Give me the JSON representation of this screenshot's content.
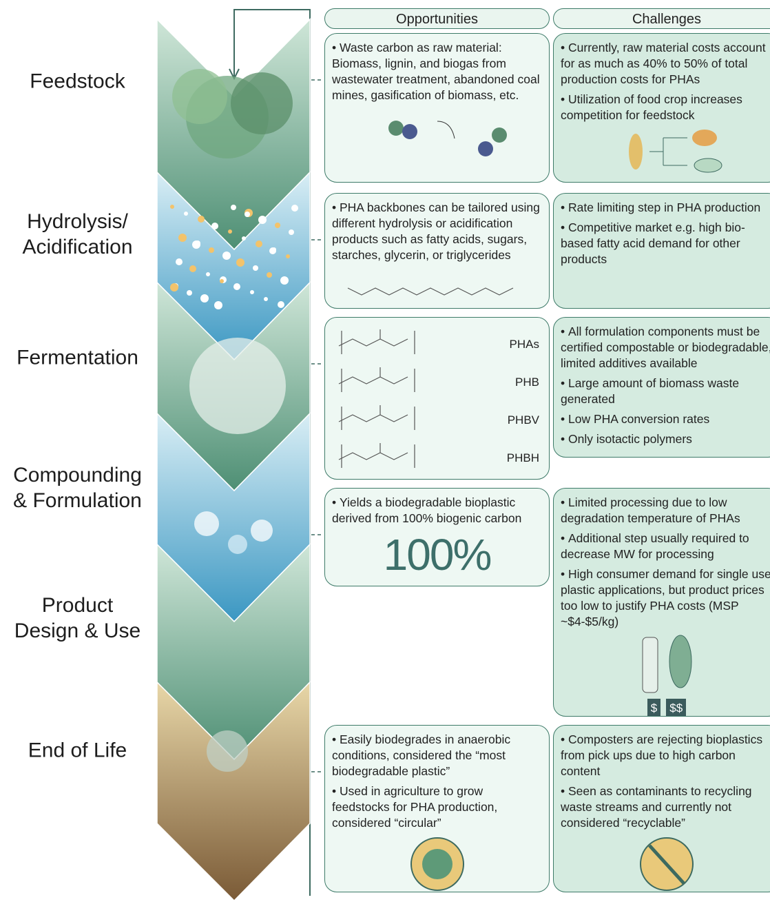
{
  "columns": {
    "opportunities": "Opportunities",
    "challenges": "Challenges"
  },
  "stages": [
    {
      "label": "Feedstock",
      "opportunities": [
        "Waste carbon as raw material: Biomass, lignin, and biogas from wastewater treatment, abandoned coal mines, gasification of biomass, etc."
      ],
      "challenges": [
        "Currently, raw material costs account for as much as 40% to 50% of total production costs for PHAs",
        "Utilization of food crop increases competition for feedstock"
      ]
    },
    {
      "label": "Hydrolysis/\nAcidification",
      "opportunities": [
        "PHA backbones can be tailored using different hydrolysis or acidification products such as fatty acids, sugars, starches, glycerin, or triglycerides"
      ],
      "challenges": [
        "Rate limiting step in PHA production",
        "Competitive market e.g. high bio-based fatty acid demand for other products"
      ]
    },
    {
      "label": "Fermentation",
      "polymers": [
        "PHAs",
        "PHB",
        "PHBV",
        "PHBH"
      ],
      "challenges": [
        "All formulation components must be certified compostable or biodegradable, limited additives available",
        "Large amount of biomass waste generated",
        "Low PHA conversion rates",
        "Only isotactic polymers"
      ]
    },
    {
      "label": "Compounding\n& Formulation",
      "opportunities": [
        "Yields a biodegradable bioplastic derived from 100% biogenic carbon"
      ],
      "badge": "100%",
      "challenges": [
        "Limited processing due to low degradation temperature of PHAs",
        "Additional step usually required to decrease MW for processing",
        "High consumer demand for single use plastic applications, but product prices too low to justify PHA costs (MSP ~$4-$5/kg)"
      ],
      "prices": [
        "$",
        "$$"
      ]
    },
    {
      "label": "Product\nDesign & Use"
    },
    {
      "label": "End of Life",
      "opportunities": [
        "Easily biodegrades in anaerobic conditions, considered the “most biodegradable plastic”",
        "Used in agriculture to grow feedstocks for PHA production, considered “circular”"
      ],
      "challenges": [
        "Composters are rejecting bioplastics from pick ups due to high carbon content",
        "Seen as contaminants to recycling waste streams and currently not considered “recyclable”"
      ]
    }
  ]
}
